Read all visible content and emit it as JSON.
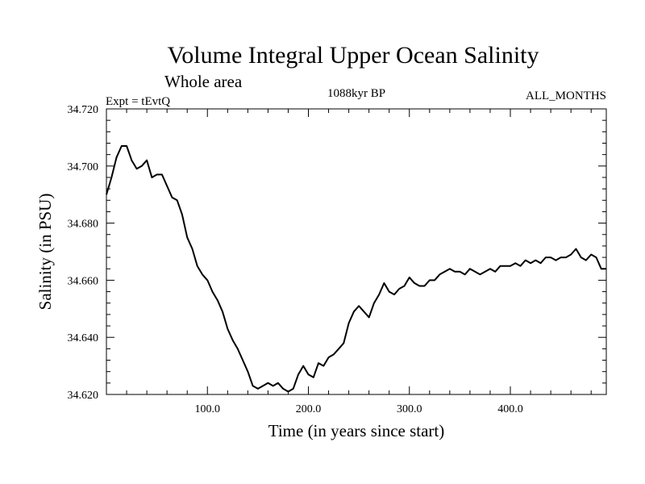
{
  "header": {
    "title": "Volume Integral Upper Ocean Salinity",
    "subtitle": "Whole area",
    "expt": "Expt = tEvtQ",
    "period": "1088kyr BP",
    "months": "ALL_MONTHS"
  },
  "chart_data": {
    "type": "line",
    "title": "Volume Integral Upper Ocean Salinity",
    "subtitle": "Whole area",
    "xlabel": "Time (in years since start)",
    "ylabel": "Salinity (in PSU)",
    "xlim": [
      0,
      495
    ],
    "ylim": [
      34.62,
      34.72
    ],
    "x_ticks": [
      100,
      200,
      300,
      400
    ],
    "x_tick_labels": [
      "100.0",
      "200.0",
      "300.0",
      "400.0"
    ],
    "y_ticks": [
      34.62,
      34.64,
      34.66,
      34.68,
      34.7,
      34.72
    ],
    "y_tick_labels": [
      "34.620",
      "34.640",
      "34.660",
      "34.680",
      "34.700",
      "34.720"
    ],
    "grid": false,
    "color": "#000000",
    "series": [
      {
        "name": "Salinity",
        "x": [
          0,
          5,
          10,
          15,
          20,
          25,
          30,
          35,
          40,
          45,
          50,
          55,
          60,
          65,
          70,
          75,
          80,
          85,
          90,
          95,
          100,
          105,
          110,
          115,
          120,
          125,
          130,
          135,
          140,
          145,
          150,
          155,
          160,
          165,
          170,
          175,
          180,
          185,
          190,
          195,
          200,
          205,
          210,
          215,
          220,
          225,
          230,
          235,
          240,
          245,
          250,
          255,
          260,
          265,
          270,
          275,
          280,
          285,
          290,
          295,
          300,
          305,
          310,
          315,
          320,
          325,
          330,
          335,
          340,
          345,
          350,
          355,
          360,
          365,
          370,
          375,
          380,
          385,
          390,
          395,
          400,
          405,
          410,
          415,
          420,
          425,
          430,
          435,
          440,
          445,
          450,
          455,
          460,
          465,
          470,
          475,
          480,
          485,
          490,
          495
        ],
        "y": [
          34.69,
          34.696,
          34.703,
          34.707,
          34.707,
          34.702,
          34.699,
          34.7,
          34.702,
          34.696,
          34.697,
          34.697,
          34.693,
          34.689,
          34.688,
          34.683,
          34.675,
          34.671,
          34.665,
          34.662,
          34.66,
          34.656,
          34.653,
          34.649,
          34.643,
          34.639,
          34.636,
          34.632,
          34.628,
          34.623,
          34.622,
          34.623,
          34.624,
          34.623,
          34.624,
          34.622,
          34.621,
          34.622,
          34.627,
          34.63,
          34.627,
          34.626,
          34.631,
          34.63,
          34.633,
          34.634,
          34.636,
          34.638,
          34.645,
          34.649,
          34.651,
          34.649,
          34.647,
          34.652,
          34.655,
          34.659,
          34.656,
          34.655,
          34.657,
          34.658,
          34.661,
          34.659,
          34.658,
          34.658,
          34.66,
          34.66,
          34.662,
          34.663,
          34.664,
          34.663,
          34.663,
          34.662,
          34.664,
          34.663,
          34.662,
          34.663,
          34.664,
          34.663,
          34.665,
          34.665,
          34.665,
          34.666,
          34.665,
          34.667,
          34.666,
          34.667,
          34.666,
          34.668,
          34.668,
          34.667,
          34.668,
          34.668,
          34.669,
          34.671,
          34.668,
          34.667,
          34.669,
          34.668,
          34.664,
          34.664
        ]
      }
    ]
  }
}
